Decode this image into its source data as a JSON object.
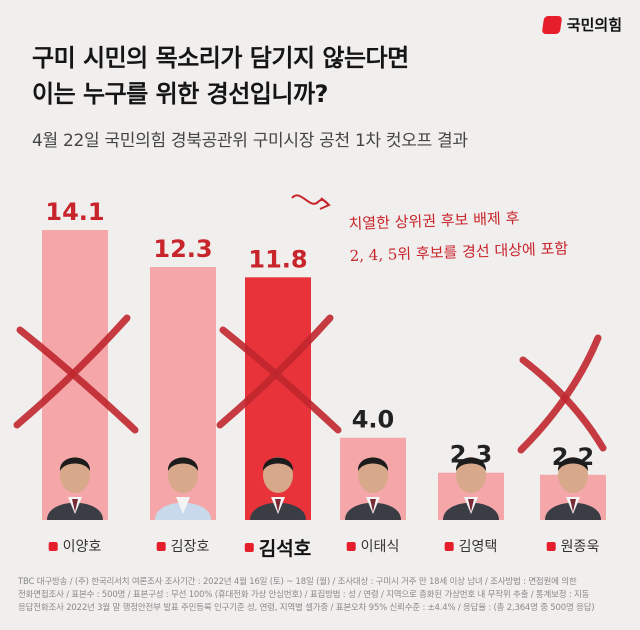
{
  "logo": {
    "text": "국민의힘"
  },
  "headline": {
    "line1": "구미 시민의 목소리가 담기지 않는다면",
    "line2": "이는 누구를 위한 경선입니까?"
  },
  "subtitle": "4월 22일 국민의힘 경북공관위 구미시장 공천 1차 컷오프 결과",
  "note": {
    "line1": "치열한 상위권 후보 배제 후",
    "line2": "2, 4, 5위 후보를 경선 대상에 포함"
  },
  "chart_data": {
    "type": "bar",
    "categories": [
      "이양호",
      "김장호",
      "김석호",
      "이태식",
      "김영택",
      "원종욱"
    ],
    "values": [
      14.1,
      12.3,
      11.8,
      4.0,
      2.3,
      2.2
    ],
    "value_labels": [
      "14.1",
      "12.3",
      "11.8",
      "4.0",
      "2.3",
      "2.2"
    ],
    "highlight_index": 2,
    "crossed_out": [
      0,
      2,
      5
    ],
    "ylim": [
      0,
      14.1
    ],
    "colors": {
      "bar": "#f4a6a8",
      "highlight": "#e8333b",
      "cross": "#c0272d",
      "label_red": "#c8242c"
    }
  },
  "footer": {
    "line1": "TBC 대구방송 / (주) 한국리서치 여론조사 조사기간 : 2022년 4월 16일 (토) ~ 18일 (월) / 조사대상 : 구미시 거주 만 18세 이상 남녀 / 조사방법 : 면접원에 의한",
    "line2": "전화면접조사 / 표본수 : 500명 / 표본구성 : 무선 100% (휴대전화 가상 안심번호) / 표집방법 : 성 / 연령 / 지역으로 층화된 가상번호 내 무작위 추출 / 통계보정 : 지동",
    "line3": "응답전화조사 2022년 3월 말 행정안전부 발표 주민등록 인구기준 성, 연령, 지역별 셀가중 / 표본오차 95% 신뢰수준 : ±4.4% / 응답율 : (총 2,364명 중 500명 응답)"
  }
}
